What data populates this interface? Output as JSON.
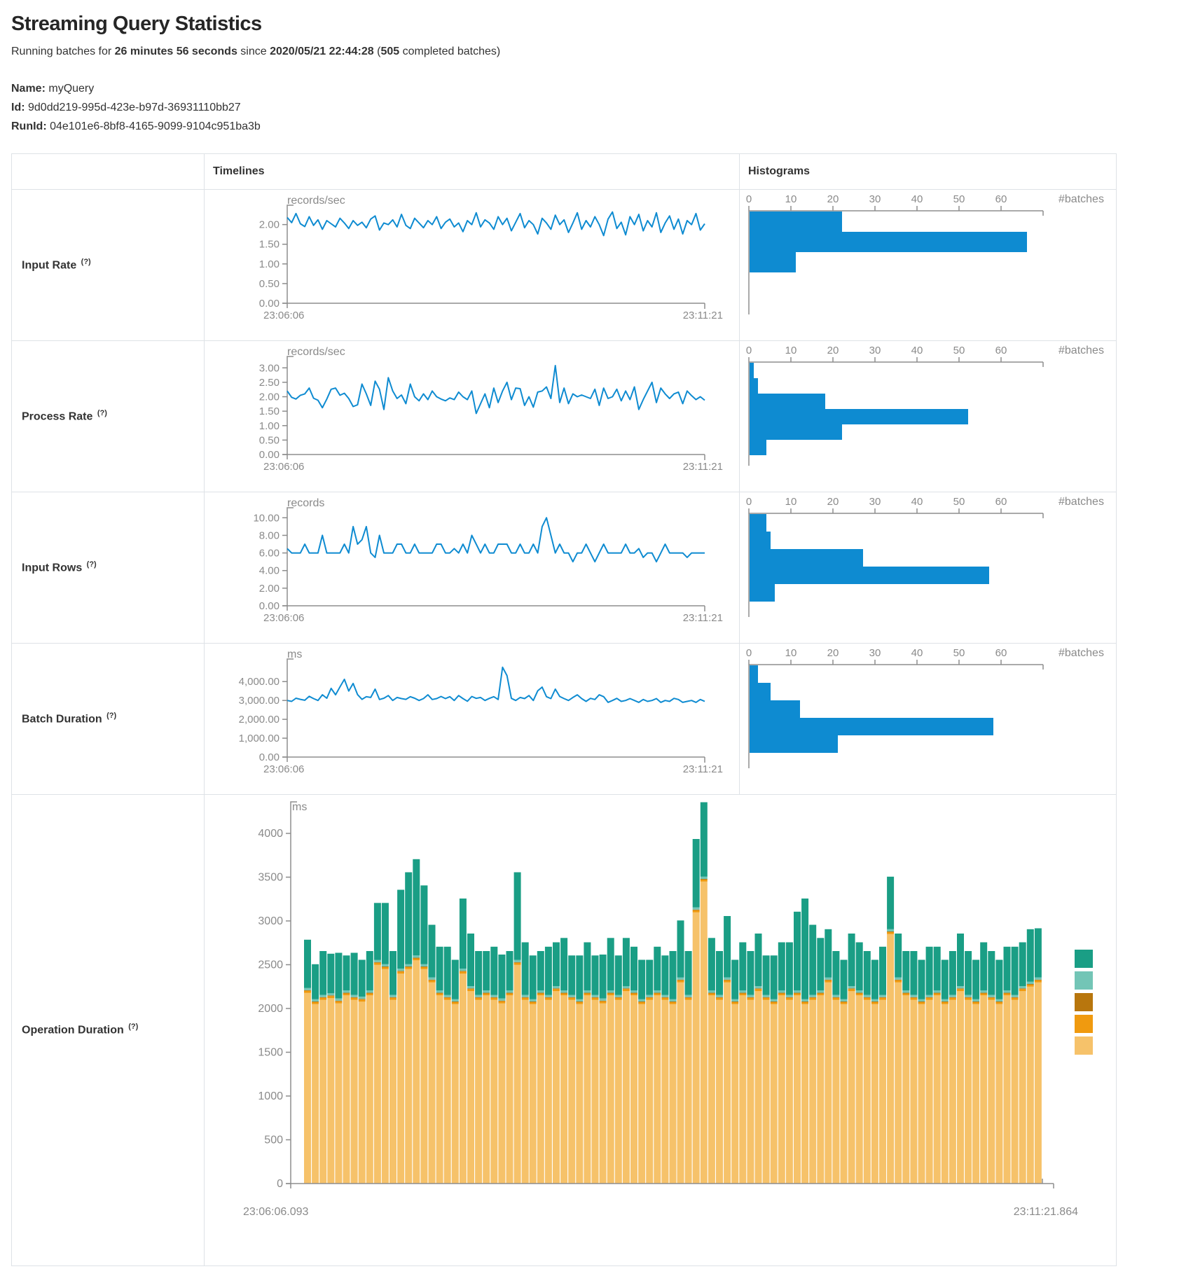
{
  "page": {
    "title": "Streaming Query Statistics",
    "subtitle": {
      "s1": "Running batches for ",
      "s2": "26 minutes 56 seconds",
      "s3": " since ",
      "s4": "2020/05/21 22:44:28",
      "s5": " (",
      "s6": "505",
      "s7": " completed batches)"
    },
    "name_label": "Name:",
    "name_value": "myQuery",
    "id_label": "Id:",
    "id_value": "9d0dd219-995d-423e-b97d-36931110bb27",
    "runid_label": "RunId:",
    "runid_value": "04e101e6-8bf8-4165-9099-9104c951ba3b"
  },
  "table": {
    "header_timelines": "Timelines",
    "header_histograms": "Histograms"
  },
  "colors": {
    "accent_blue": "#0E8BD1",
    "axis_line": "#8d8d8d",
    "axis_text": "#8a8a8a",
    "border": "#dee2e6"
  },
  "chart_data": [
    {
      "id": "input-rate",
      "label": "Input Rate",
      "help": "(?)",
      "type": "line",
      "unit": "records/sec",
      "x_start": "23:06:06",
      "x_end": "23:11:21",
      "ymax": 2.35,
      "yticks": [
        {
          "v": 2.0,
          "label": "2.00"
        },
        {
          "v": 1.5,
          "label": "1.50"
        },
        {
          "v": 1.0,
          "label": "1.00"
        },
        {
          "v": 0.5,
          "label": "0.50"
        },
        {
          "v": 0.0,
          "label": "0.00"
        }
      ],
      "values": [
        2.18,
        2.05,
        2.28,
        2.02,
        1.95,
        2.2,
        1.98,
        2.12,
        1.88,
        2.1,
        2.02,
        1.94,
        2.16,
        2.04,
        1.9,
        2.1,
        1.98,
        2.06,
        1.92,
        2.14,
        2.22,
        1.86,
        2.04,
        2.0,
        2.12,
        1.94,
        2.26,
        1.98,
        1.9,
        2.16,
        2.04,
        1.92,
        2.1,
        2.0,
        2.2,
        1.9,
        2.06,
        2.14,
        1.94,
        2.04,
        1.82,
        2.1,
        2.0,
        2.3,
        1.94,
        2.12,
        2.04,
        1.88,
        2.2,
        2.0,
        2.16,
        1.84,
        2.06,
        2.28,
        1.92,
        2.1,
        2.0,
        1.76,
        2.16,
        2.04,
        1.88,
        2.24,
        2.0,
        2.12,
        1.8,
        2.04,
        2.3,
        1.88,
        2.1,
        1.94,
        2.2,
        2.0,
        1.72,
        2.14,
        2.32,
        1.9,
        2.06,
        1.74,
        2.2,
        2.0,
        2.26,
        1.84,
        2.1,
        1.94,
        2.3,
        1.8,
        2.04,
        2.22,
        1.88,
        2.14,
        1.76,
        2.1,
        2.0,
        2.28,
        1.86,
        2.02
      ],
      "histogram": {
        "xticks": [
          0,
          10,
          20,
          30,
          40,
          50,
          60
        ],
        "xlabel": "#batches",
        "bins": [
          22,
          66,
          11
        ]
      }
    },
    {
      "id": "process-rate",
      "label": "Process Rate",
      "help": "(?)",
      "type": "line",
      "unit": "records/sec",
      "x_start": "23:06:06",
      "x_end": "23:11:21",
      "ymax": 3.2,
      "yticks": [
        {
          "v": 3.0,
          "label": "3.00"
        },
        {
          "v": 2.5,
          "label": "2.50"
        },
        {
          "v": 2.0,
          "label": "2.00"
        },
        {
          "v": 1.5,
          "label": "1.50"
        },
        {
          "v": 1.0,
          "label": "1.00"
        },
        {
          "v": 0.5,
          "label": "0.50"
        },
        {
          "v": 0.0,
          "label": "0.00"
        }
      ],
      "values": [
        2.2,
        1.98,
        1.92,
        2.05,
        2.1,
        2.3,
        1.95,
        1.88,
        1.62,
        1.92,
        2.26,
        2.3,
        2.05,
        2.12,
        1.94,
        1.66,
        1.72,
        2.44,
        2.1,
        1.7,
        2.54,
        2.26,
        1.56,
        2.66,
        2.2,
        1.94,
        2.06,
        1.76,
        2.44,
        2.0,
        1.86,
        2.1,
        1.9,
        2.2,
        2.0,
        1.92,
        1.86,
        1.96,
        1.9,
        2.16,
        2.0,
        1.9,
        2.2,
        1.42,
        1.76,
        2.1,
        1.62,
        2.3,
        1.8,
        2.2,
        2.5,
        1.9,
        2.3,
        2.28,
        1.7,
        2.0,
        1.64,
        2.16,
        2.2,
        2.34,
        1.94,
        3.08,
        1.8,
        2.3,
        1.76,
        2.1,
        2.0,
        2.06,
        2.0,
        1.94,
        2.26,
        1.7,
        2.3,
        1.94,
        2.0,
        2.26,
        1.86,
        2.2,
        1.9,
        2.34,
        1.56,
        1.9,
        2.2,
        2.5,
        1.8,
        2.3,
        2.1,
        1.94,
        2.1,
        2.16,
        1.76,
        2.2,
        2.04,
        1.9,
        2.0,
        1.88
      ],
      "histogram": {
        "xticks": [
          0,
          10,
          20,
          30,
          40,
          50,
          60
        ],
        "xlabel": "#batches",
        "bins": [
          1,
          2,
          18,
          52,
          22,
          4
        ]
      }
    },
    {
      "id": "input-rows",
      "label": "Input Rows",
      "help": "(?)",
      "type": "line",
      "unit": "records",
      "x_start": "23:06:06",
      "x_end": "23:11:21",
      "ymax": 10.5,
      "yticks": [
        {
          "v": 10.0,
          "label": "10.00"
        },
        {
          "v": 8.0,
          "label": "8.00"
        },
        {
          "v": 6.0,
          "label": "6.00"
        },
        {
          "v": 4.0,
          "label": "4.00"
        },
        {
          "v": 2.0,
          "label": "2.00"
        },
        {
          "v": 0.0,
          "label": "0.00"
        }
      ],
      "values": [
        6.5,
        6,
        6,
        6,
        7,
        6,
        6,
        6,
        8,
        6,
        6,
        6,
        6,
        7,
        6,
        9,
        7,
        7.5,
        9,
        6,
        5.5,
        8,
        6,
        6,
        6,
        7,
        7,
        6,
        6,
        7,
        6,
        6,
        6,
        6,
        7,
        7,
        6,
        6,
        6.5,
        6,
        7,
        6,
        8,
        7,
        6,
        7,
        6,
        6,
        7,
        7,
        7,
        6,
        6,
        7,
        6,
        6,
        7,
        6,
        9,
        10,
        8,
        6,
        7,
        6,
        6,
        5,
        6,
        6,
        7,
        6,
        5,
        6,
        7,
        6,
        6,
        6,
        6,
        7,
        6,
        6,
        6.5,
        5.5,
        6,
        6,
        5,
        6,
        7,
        6,
        6,
        6,
        6,
        5.5,
        6,
        6,
        6,
        6
      ],
      "histogram": {
        "xticks": [
          0,
          10,
          20,
          30,
          40,
          50,
          60
        ],
        "xlabel": "#batches",
        "bins": [
          4,
          5,
          27,
          57,
          6
        ]
      }
    },
    {
      "id": "batch-duration",
      "label": "Batch Duration",
      "help": "(?)",
      "type": "line",
      "unit": "ms",
      "x_start": "23:06:06",
      "x_end": "23:11:21",
      "ymax": 4900,
      "yticks": [
        {
          "v": 4000,
          "label": "4,000.00"
        },
        {
          "v": 3000,
          "label": "3,000.00"
        },
        {
          "v": 2000,
          "label": "2,000.00"
        },
        {
          "v": 1000,
          "label": "1,000.00"
        },
        {
          "v": 0,
          "label": "0.00"
        }
      ],
      "values": [
        3000,
        2950,
        3120,
        3060,
        3010,
        3220,
        3100,
        3000,
        3300,
        3120,
        3640,
        3300,
        3720,
        4120,
        3500,
        3900,
        3310,
        3060,
        3200,
        3160,
        3600,
        3050,
        3120,
        3260,
        3000,
        3160,
        3100,
        3060,
        3200,
        3120,
        3000,
        3100,
        3300,
        3050,
        3100,
        3210,
        3100,
        3200,
        3000,
        3260,
        3100,
        2960,
        3210,
        3110,
        3160,
        3000,
        3110,
        3200,
        3050,
        4760,
        4320,
        3110,
        3000,
        3160,
        3100,
        3260,
        3000,
        3510,
        3710,
        3200,
        3100,
        3600,
        3210,
        3100,
        3000,
        3160,
        3300,
        3100,
        2950,
        3110,
        3050,
        3300,
        3200,
        2900,
        3000,
        3110,
        2950,
        3000,
        3100,
        3000,
        2900,
        3050,
        2950,
        3000,
        3100,
        2900,
        3000,
        2950,
        3110,
        3050,
        2900,
        2950,
        3000,
        2900,
        3050,
        2950
      ],
      "histogram": {
        "xticks": [
          0,
          10,
          20,
          30,
          40,
          50,
          60
        ],
        "xlabel": "#batches",
        "bins": [
          2,
          5,
          12,
          58,
          21
        ]
      }
    },
    {
      "id": "operation-duration",
      "label": "Operation Duration",
      "help": "(?)",
      "type": "stacked-bar",
      "unit": "ms",
      "x_start": "23:06:06.093",
      "x_end": "23:11:21.864",
      "ymax": 4400,
      "yticks": [
        {
          "v": 4000,
          "label": "4000"
        },
        {
          "v": 3500,
          "label": "3500"
        },
        {
          "v": 3000,
          "label": "3000"
        },
        {
          "v": 2500,
          "label": "2500"
        },
        {
          "v": 2000,
          "label": "2000"
        },
        {
          "v": 1500,
          "label": "1500"
        },
        {
          "v": 1000,
          "label": "1000"
        },
        {
          "v": 500,
          "label": "500"
        },
        {
          "v": 0,
          "label": "0"
        }
      ],
      "legend_colors": [
        "#1A9E85",
        "#73C5B6",
        "#B8760D",
        "#F09A0F",
        "#F6C26A"
      ],
      "series": [
        {
          "name": "tan-bottom-segment",
          "color": "#F6C26A",
          "values": [
            2180,
            2050,
            2100,
            2120,
            2060,
            2150,
            2100,
            2080,
            2150,
            2500,
            2450,
            2100,
            2400,
            2450,
            2550,
            2450,
            2300,
            2150,
            2100,
            2050,
            2400,
            2200,
            2100,
            2150,
            2100,
            2060,
            2150,
            2500,
            2100,
            2050,
            2150,
            2100,
            2200,
            2150,
            2100,
            2050,
            2150,
            2100,
            2060,
            2150,
            2100,
            2200,
            2150,
            2050,
            2100,
            2150,
            2100,
            2050,
            2300,
            2100,
            3100,
            3450,
            2150,
            2100,
            2300,
            2050,
            2150,
            2100,
            2200,
            2100,
            2050,
            2150,
            2100,
            2150,
            2050,
            2100,
            2150,
            2300,
            2100,
            2050,
            2200,
            2150,
            2100,
            2050,
            2100,
            2850,
            2300,
            2150,
            2100,
            2050,
            2100,
            2150,
            2050,
            2100,
            2200,
            2100,
            2050,
            2150,
            2100,
            2050,
            2150,
            2100,
            2200,
            2250,
            2300
          ]
        },
        {
          "name": "orange-segment",
          "color": "#F09A0F",
          "const": 22
        },
        {
          "name": "brown-segment",
          "color": "#B8760D",
          "const": 8
        },
        {
          "name": "light-teal-segment",
          "color": "#73C5B6",
          "const": 26
        },
        {
          "name": "teal-top-segment",
          "color": "#1A9E85",
          "values": [
            550,
            400,
            500,
            450,
            520,
            400,
            480,
            420,
            450,
            650,
            700,
            500,
            900,
            1050,
            1100,
            900,
            600,
            500,
            550,
            450,
            800,
            600,
            500,
            450,
            550,
            500,
            450,
            1000,
            600,
            500,
            450,
            550,
            500,
            600,
            450,
            500,
            550,
            450,
            500,
            600,
            450,
            550,
            500,
            450,
            400,
            500,
            450,
            550,
            650,
            500,
            780,
            850,
            600,
            500,
            700,
            450,
            550,
            500,
            600,
            450,
            500,
            550,
            600,
            900,
            1150,
            800,
            600,
            550,
            500,
            450,
            600,
            550,
            500,
            450,
            550,
            600,
            500,
            450,
            500,
            450,
            550,
            500,
            450,
            500,
            600,
            500,
            450,
            550,
            500,
            450,
            500,
            550,
            500,
            600,
            560
          ]
        }
      ]
    }
  ]
}
